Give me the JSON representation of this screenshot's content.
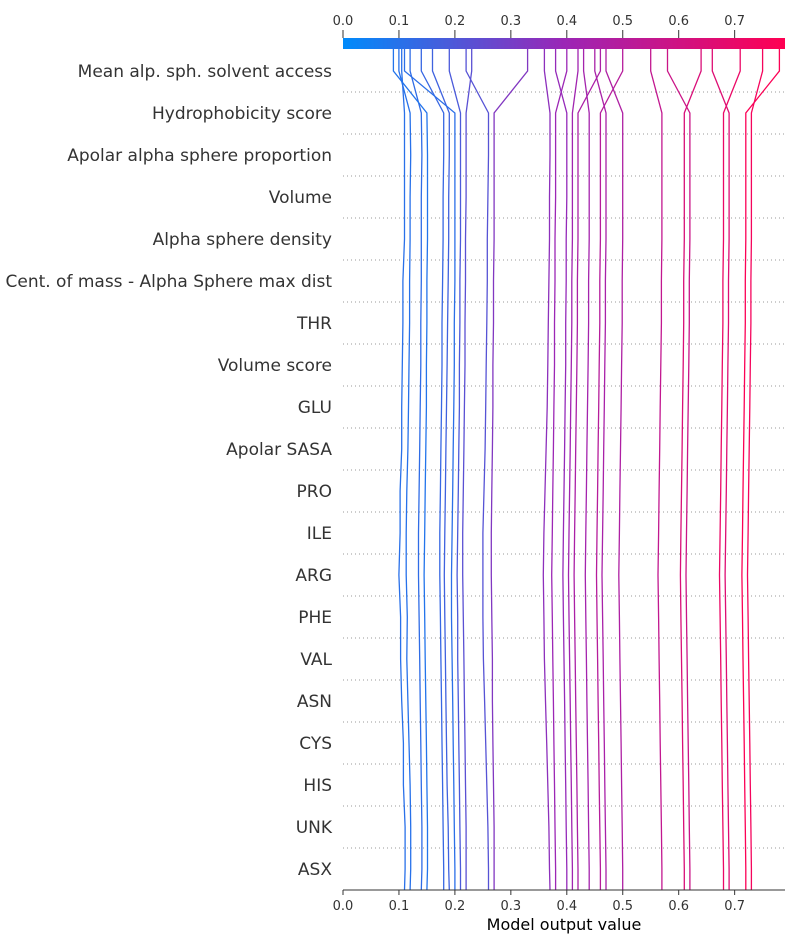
{
  "chart_data": {
    "type": "line",
    "xlabel": "Model output value",
    "xlim": [
      0.0,
      0.79
    ],
    "xticks": [
      "0.0",
      "0.1",
      "0.2",
      "0.3",
      "0.4",
      "0.5",
      "0.6",
      "0.7"
    ],
    "colorbar": {
      "from": "#008bfb",
      "to": "#ff0052",
      "mid": "#9b26b6"
    },
    "features": [
      "Mean alp. sph. solvent access",
      "Hydrophobicity score",
      "Apolar alpha sphere proportion",
      "Volume",
      "Alpha sphere density",
      "Cent. of mass - Alpha Sphere max dist",
      "THR",
      "Volume score",
      "GLU",
      "Apolar SASA",
      "PRO",
      "ILE",
      "ARG",
      "PHE",
      "VAL",
      "ASN",
      "CYS",
      "HIS",
      "UNK",
      "ASX"
    ],
    "series": [
      {
        "values": [
          0.11,
          0.111,
          0.111,
          0.108,
          0.108,
          0.105,
          0.103,
          0.103,
          0.1,
          0.102,
          0.102,
          0.105,
          0.105,
          0.106,
          0.107,
          0.107,
          0.11,
          0.11,
          0.11,
          0.11,
          0.105
        ]
      },
      {
        "values": [
          0.12,
          0.121,
          0.121,
          0.12,
          0.118,
          0.116,
          0.114,
          0.115,
          0.113,
          0.113,
          0.114,
          0.116,
          0.117,
          0.118,
          0.119,
          0.119,
          0.12,
          0.12,
          0.121,
          0.12,
          0.1
        ]
      },
      {
        "values": [
          0.14,
          0.141,
          0.141,
          0.14,
          0.139,
          0.138,
          0.137,
          0.136,
          0.135,
          0.135,
          0.136,
          0.137,
          0.138,
          0.139,
          0.139,
          0.14,
          0.14,
          0.14,
          0.141,
          0.14,
          0.12
        ]
      },
      {
        "values": [
          0.15,
          0.151,
          0.151,
          0.15,
          0.149,
          0.148,
          0.147,
          0.146,
          0.145,
          0.146,
          0.147,
          0.148,
          0.149,
          0.149,
          0.15,
          0.15,
          0.151,
          0.151,
          0.151,
          0.15,
          0.09
        ]
      },
      {
        "values": [
          0.18,
          0.18,
          0.179,
          0.178,
          0.177,
          0.176,
          0.175,
          0.174,
          0.173,
          0.173,
          0.174,
          0.175,
          0.176,
          0.177,
          0.177,
          0.178,
          0.179,
          0.179,
          0.18,
          0.18,
          0.14
        ]
      },
      {
        "values": [
          0.19,
          0.189,
          0.188,
          0.186,
          0.185,
          0.184,
          0.183,
          0.182,
          0.181,
          0.182,
          0.183,
          0.184,
          0.185,
          0.186,
          0.187,
          0.188,
          0.189,
          0.189,
          0.19,
          0.19,
          0.16
        ]
      },
      {
        "values": [
          0.2,
          0.2,
          0.199,
          0.198,
          0.197,
          0.196,
          0.195,
          0.194,
          0.194,
          0.195,
          0.196,
          0.197,
          0.198,
          0.199,
          0.199,
          0.2,
          0.2,
          0.2,
          0.2,
          0.2,
          0.11
        ]
      },
      {
        "values": [
          0.21,
          0.21,
          0.209,
          0.208,
          0.207,
          0.206,
          0.205,
          0.205,
          0.204,
          0.205,
          0.206,
          0.207,
          0.208,
          0.208,
          0.209,
          0.209,
          0.21,
          0.21,
          0.21,
          0.21,
          0.19
        ]
      },
      {
        "values": [
          0.22,
          0.22,
          0.22,
          0.219,
          0.218,
          0.217,
          0.216,
          0.215,
          0.214,
          0.214,
          0.215,
          0.216,
          0.217,
          0.218,
          0.218,
          0.219,
          0.219,
          0.22,
          0.22,
          0.22,
          0.23
        ]
      },
      {
        "values": [
          0.26,
          0.26,
          0.259,
          0.257,
          0.255,
          0.253,
          0.251,
          0.25,
          0.25,
          0.25,
          0.252,
          0.254,
          0.255,
          0.256,
          0.257,
          0.258,
          0.258,
          0.259,
          0.26,
          0.26,
          0.22
        ]
      },
      {
        "values": [
          0.27,
          0.27,
          0.27,
          0.269,
          0.268,
          0.267,
          0.267,
          0.266,
          0.265,
          0.265,
          0.266,
          0.267,
          0.268,
          0.268,
          0.269,
          0.269,
          0.27,
          0.27,
          0.27,
          0.27,
          0.33
        ]
      },
      {
        "values": [
          0.37,
          0.369,
          0.368,
          0.366,
          0.364,
          0.362,
          0.36,
          0.359,
          0.358,
          0.359,
          0.361,
          0.363,
          0.365,
          0.366,
          0.367,
          0.368,
          0.369,
          0.369,
          0.37,
          0.37,
          0.36
        ]
      },
      {
        "values": [
          0.38,
          0.38,
          0.379,
          0.378,
          0.377,
          0.376,
          0.375,
          0.374,
          0.373,
          0.374,
          0.375,
          0.376,
          0.377,
          0.378,
          0.378,
          0.379,
          0.379,
          0.38,
          0.38,
          0.38,
          0.4
        ]
      },
      {
        "values": [
          0.4,
          0.4,
          0.399,
          0.398,
          0.397,
          0.396,
          0.395,
          0.394,
          0.393,
          0.394,
          0.395,
          0.396,
          0.397,
          0.398,
          0.398,
          0.399,
          0.399,
          0.4,
          0.4,
          0.4,
          0.38
        ]
      },
      {
        "values": [
          0.41,
          0.41,
          0.409,
          0.408,
          0.407,
          0.406,
          0.405,
          0.404,
          0.403,
          0.404,
          0.405,
          0.406,
          0.407,
          0.408,
          0.409,
          0.409,
          0.41,
          0.41,
          0.41,
          0.41,
          0.42
        ]
      },
      {
        "values": [
          0.42,
          0.42,
          0.419,
          0.418,
          0.417,
          0.416,
          0.415,
          0.414,
          0.413,
          0.414,
          0.415,
          0.416,
          0.417,
          0.418,
          0.419,
          0.419,
          0.42,
          0.42,
          0.42,
          0.42,
          0.46
        ]
      },
      {
        "values": [
          0.44,
          0.44,
          0.439,
          0.438,
          0.437,
          0.436,
          0.435,
          0.434,
          0.433,
          0.434,
          0.435,
          0.436,
          0.437,
          0.438,
          0.439,
          0.439,
          0.44,
          0.44,
          0.44,
          0.44,
          0.43
        ]
      },
      {
        "values": [
          0.46,
          0.46,
          0.459,
          0.458,
          0.457,
          0.456,
          0.455,
          0.454,
          0.453,
          0.454,
          0.455,
          0.456,
          0.457,
          0.458,
          0.459,
          0.459,
          0.46,
          0.46,
          0.46,
          0.46,
          0.5
        ]
      },
      {
        "values": [
          0.47,
          0.47,
          0.469,
          0.468,
          0.467,
          0.466,
          0.465,
          0.464,
          0.463,
          0.464,
          0.465,
          0.466,
          0.467,
          0.468,
          0.469,
          0.469,
          0.47,
          0.47,
          0.47,
          0.47,
          0.45
        ]
      },
      {
        "values": [
          0.5,
          0.5,
          0.499,
          0.498,
          0.497,
          0.496,
          0.495,
          0.494,
          0.493,
          0.494,
          0.495,
          0.496,
          0.497,
          0.498,
          0.499,
          0.499,
          0.5,
          0.5,
          0.5,
          0.5,
          0.47
        ]
      },
      {
        "values": [
          0.57,
          0.57,
          0.569,
          0.568,
          0.567,
          0.566,
          0.565,
          0.564,
          0.563,
          0.564,
          0.565,
          0.566,
          0.567,
          0.568,
          0.569,
          0.569,
          0.57,
          0.57,
          0.57,
          0.57,
          0.55
        ]
      },
      {
        "values": [
          0.61,
          0.61,
          0.609,
          0.608,
          0.607,
          0.606,
          0.605,
          0.604,
          0.603,
          0.604,
          0.605,
          0.606,
          0.607,
          0.608,
          0.609,
          0.609,
          0.61,
          0.61,
          0.61,
          0.61,
          0.64
        ]
      },
      {
        "values": [
          0.62,
          0.62,
          0.619,
          0.618,
          0.617,
          0.616,
          0.615,
          0.614,
          0.613,
          0.614,
          0.615,
          0.616,
          0.617,
          0.618,
          0.619,
          0.619,
          0.62,
          0.62,
          0.62,
          0.62,
          0.58
        ]
      },
      {
        "values": [
          0.68,
          0.68,
          0.679,
          0.678,
          0.677,
          0.676,
          0.675,
          0.674,
          0.673,
          0.674,
          0.675,
          0.676,
          0.677,
          0.678,
          0.679,
          0.679,
          0.68,
          0.68,
          0.68,
          0.68,
          0.71
        ]
      },
      {
        "values": [
          0.69,
          0.69,
          0.689,
          0.688,
          0.687,
          0.686,
          0.685,
          0.684,
          0.683,
          0.684,
          0.685,
          0.686,
          0.687,
          0.688,
          0.689,
          0.689,
          0.69,
          0.69,
          0.69,
          0.69,
          0.66
        ]
      },
      {
        "values": [
          0.72,
          0.72,
          0.719,
          0.718,
          0.717,
          0.716,
          0.715,
          0.714,
          0.713,
          0.714,
          0.715,
          0.716,
          0.717,
          0.718,
          0.719,
          0.719,
          0.72,
          0.72,
          0.72,
          0.72,
          0.78
        ]
      },
      {
        "values": [
          0.73,
          0.73,
          0.729,
          0.728,
          0.727,
          0.726,
          0.725,
          0.724,
          0.723,
          0.724,
          0.725,
          0.726,
          0.727,
          0.728,
          0.729,
          0.729,
          0.73,
          0.73,
          0.73,
          0.73,
          0.75
        ]
      }
    ]
  }
}
